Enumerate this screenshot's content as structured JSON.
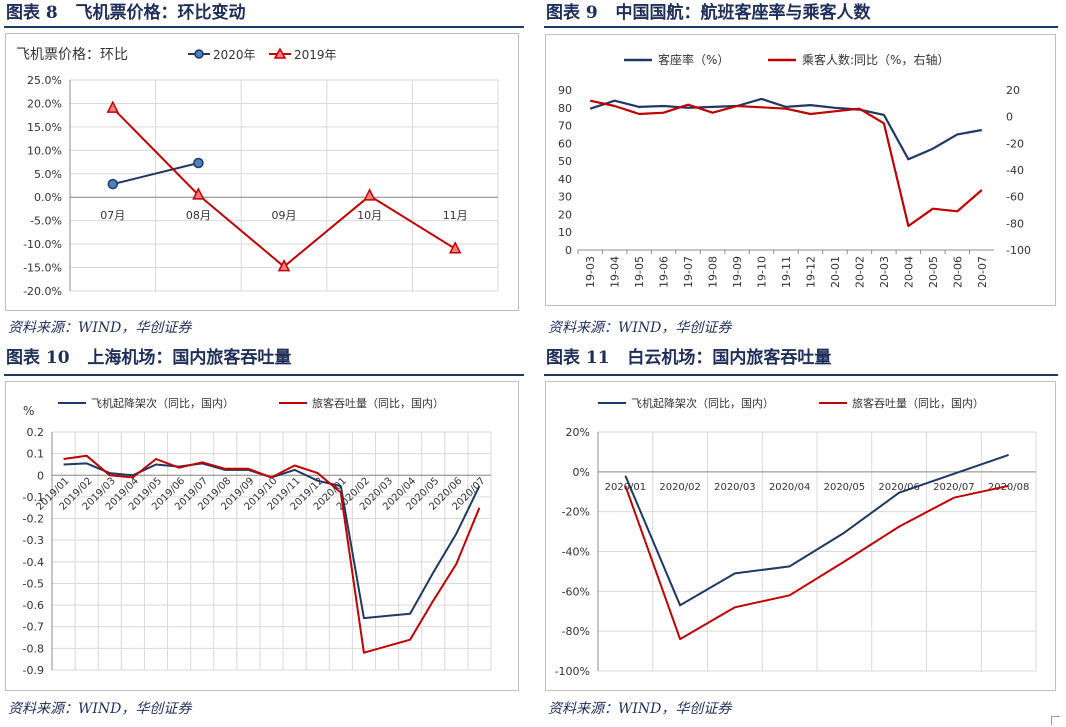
{
  "panels": [
    {
      "number_label": "图表 8",
      "title": "飞机票价格：环比变动",
      "source": "资料来源：WIND，华创证券"
    },
    {
      "number_label": "图表 9",
      "title": "中国国航：航班客座率与乘客人数",
      "source": "资料来源：WIND，华创证券"
    },
    {
      "number_label": "图表 10",
      "title": "上海机场：国内旅客吞吐量",
      "source": "资料来源：WIND，华创证券"
    },
    {
      "number_label": "图表 11",
      "title": "白云机场：国内旅客吞吐量",
      "source": "资料来源：WIND，华创证券"
    }
  ],
  "chart_data": [
    {
      "type": "line",
      "title": "飞机票价格：环比",
      "categories": [
        "07月",
        "08月",
        "09月",
        "10月",
        "11月"
      ],
      "ylim": [
        -20,
        25
      ],
      "y_ticks": [
        "25.0%",
        "20.0%",
        "15.0%",
        "10.0%",
        "5.0%",
        "0.0%",
        "-5.0%",
        "-10.0%",
        "-15.0%",
        "-20.0%"
      ],
      "series": [
        {
          "name": "2020年",
          "values": [
            2.8,
            7.3,
            null,
            null,
            null
          ],
          "color": "#1f3864",
          "marker": "circle"
        },
        {
          "name": "2019年",
          "values": [
            19.0,
            0.5,
            -14.8,
            0.3,
            -11.0
          ],
          "color": "#c00000",
          "marker": "triangle"
        }
      ]
    },
    {
      "type": "line",
      "title": "中国国航",
      "categories": [
        "19-03",
        "19-04",
        "19-05",
        "19-06",
        "19-07",
        "19-08",
        "19-09",
        "19-10",
        "19-11",
        "19-12",
        "20-01",
        "20-02",
        "20-03",
        "20-04",
        "20-05",
        "20-06",
        "20-07"
      ],
      "ylim": [
        0,
        90
      ],
      "y2lim": [
        -100,
        20
      ],
      "y_ticks": [
        "90",
        "80",
        "70",
        "60",
        "50",
        "40",
        "30",
        "20",
        "10",
        "0"
      ],
      "y2_ticks": [
        "20",
        "0",
        "-20",
        "-40",
        "-60",
        "-80",
        "-100"
      ],
      "series": [
        {
          "name": "客座率（%）",
          "axis": "left",
          "color": "#1f3864",
          "values": [
            79.5,
            84,
            80.5,
            81,
            80,
            80.5,
            81,
            85,
            80.5,
            81.5,
            80,
            79,
            76,
            51,
            57,
            65,
            67.5
          ]
        },
        {
          "name": "乘客人数:同比（%，右轴）",
          "axis": "right",
          "color": "#c00000",
          "values": [
            12,
            8,
            2,
            3,
            9,
            3,
            8,
            7,
            6,
            2,
            4,
            6,
            -5,
            -82,
            -69,
            -71,
            -55
          ]
        }
      ]
    },
    {
      "type": "line",
      "title": "上海机场",
      "ylabel": "%",
      "categories": [
        "2019/01",
        "2019/02",
        "2019/03",
        "2019/04",
        "2019/05",
        "2019/06",
        "2019/07",
        "2019/08",
        "2019/09",
        "2019/10",
        "2019/11",
        "2019/12",
        "2020/01",
        "2020/02",
        "2020/03",
        "2020/04",
        "2020/05",
        "2020/06",
        "2020/07"
      ],
      "ylim": [
        -0.9,
        0.2
      ],
      "y_ticks": [
        "0.2",
        "0.1",
        "0",
        "-0.1",
        "-0.2",
        "-0.3",
        "-0.4",
        "-0.5",
        "-0.6",
        "-0.7",
        "-0.8",
        "-0.9"
      ],
      "series": [
        {
          "name": "飞机起降架次（同比，国内）",
          "color": "#1f3864",
          "values": [
            0.05,
            0.055,
            0.01,
            0.0,
            0.05,
            0.04,
            0.055,
            0.025,
            0.025,
            -0.01,
            0.025,
            -0.025,
            -0.05,
            -0.66,
            -0.65,
            -0.64,
            -0.45,
            -0.27,
            -0.05
          ]
        },
        {
          "name": "旅客吞吐量（同比，国内）",
          "color": "#c00000",
          "values": [
            0.075,
            0.09,
            0.0,
            -0.01,
            0.075,
            0.035,
            0.06,
            0.03,
            0.03,
            -0.01,
            0.045,
            0.01,
            -0.08,
            -0.82,
            -0.79,
            -0.76,
            -0.58,
            -0.41,
            -0.15
          ]
        }
      ]
    },
    {
      "type": "line",
      "title": "白云机场",
      "categories": [
        "2020/01",
        "2020/02",
        "2020/03",
        "2020/04",
        "2020/05",
        "2020/06",
        "2020/07",
        "2020/08"
      ],
      "ylim": [
        -100,
        20
      ],
      "y_ticks": [
        "20%",
        "0%",
        "-20%",
        "-40%",
        "-60%",
        "-80%",
        "-100%"
      ],
      "series": [
        {
          "name": "飞机起降架次（同比，国内）",
          "color": "#1f3864",
          "values": [
            -2,
            -67,
            -51,
            -47.5,
            -30.5,
            -10.5,
            -1,
            8.5
          ]
        },
        {
          "name": "旅客吞吐量（同比，国内）",
          "color": "#c00000",
          "values": [
            -7,
            -84,
            -68,
            -62,
            -45,
            -27.5,
            -13,
            -7
          ]
        }
      ]
    }
  ]
}
